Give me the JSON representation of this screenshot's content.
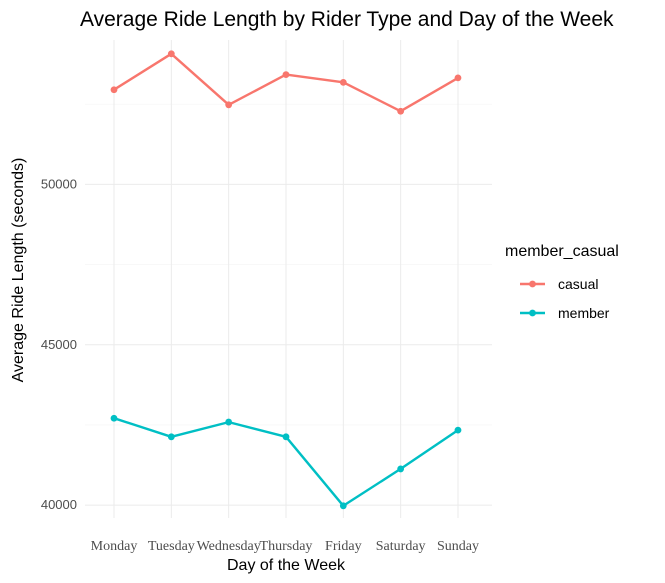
{
  "chart_data": {
    "type": "line",
    "title": "Average Ride Length by Rider Type and Day of the Week",
    "xlabel": "Day of the Week",
    "ylabel": "Average Ride Length (seconds)",
    "categories": [
      "Monday",
      "Tuesday",
      "Wednesday",
      "Thursday",
      "Friday",
      "Saturday",
      "Sunday"
    ],
    "ylim": [
      39600,
      54500
    ],
    "yticks": [
      40000,
      45000,
      50000
    ],
    "ytick_labels": [
      "40000",
      "45000",
      "50000"
    ],
    "grid": true,
    "legend": {
      "title": "member_casual",
      "position": "right"
    },
    "series": [
      {
        "name": "casual",
        "color": "#F8766D",
        "values": [
          52950,
          54070,
          52480,
          53420,
          53180,
          52280,
          53320
        ]
      },
      {
        "name": "member",
        "color": "#00BFC4",
        "values": [
          42710,
          42130,
          42590,
          42130,
          39980,
          41130,
          42340
        ]
      }
    ]
  }
}
